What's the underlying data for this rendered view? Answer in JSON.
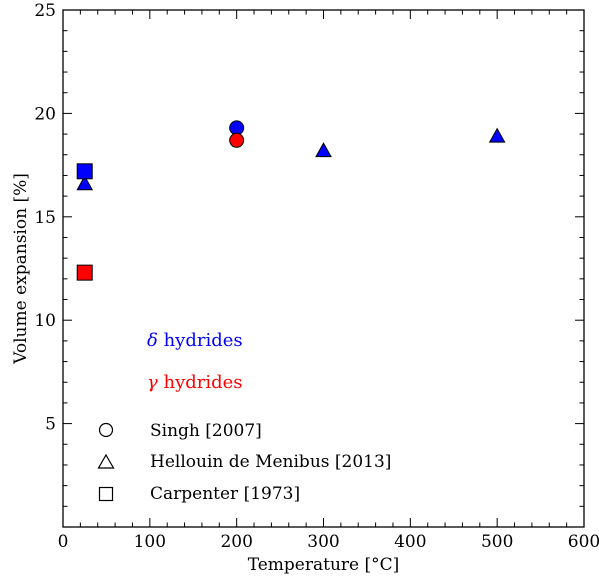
{
  "chart_data": {
    "type": "scatter",
    "title": "",
    "xlabel": "Temperature [°C]",
    "ylabel": "Volume expansion [%]",
    "xlim": [
      0,
      600
    ],
    "ylim": [
      0,
      25
    ],
    "xticks": [
      0,
      100,
      200,
      300,
      400,
      500,
      600
    ],
    "yticks": [
      5,
      10,
      15,
      20,
      25
    ],
    "grid": false,
    "legend_placement": "bottom-left",
    "colors": {
      "delta": "#0000ff",
      "gamma": "#ff0000"
    },
    "annotations": [
      {
        "symbol": "δ",
        "text": " hydrides",
        "color": "#0000ff"
      },
      {
        "symbol": "γ",
        "text": " hydrides",
        "color": "#ff0000"
      }
    ],
    "legend": [
      {
        "label": "Singh [2007]",
        "marker": "circle"
      },
      {
        "label": "Hellouin de Menibus [2013]",
        "marker": "triangle"
      },
      {
        "label": "Carpenter [1973]",
        "marker": "square"
      }
    ],
    "points": [
      {
        "x": 200,
        "y": 19.3,
        "marker": "circle",
        "phase": "delta"
      },
      {
        "x": 200,
        "y": 18.7,
        "marker": "circle",
        "phase": "gamma"
      },
      {
        "x": 25,
        "y": 16.6,
        "marker": "triangle",
        "phase": "delta"
      },
      {
        "x": 300,
        "y": 18.2,
        "marker": "triangle",
        "phase": "delta"
      },
      {
        "x": 500,
        "y": 18.9,
        "marker": "triangle",
        "phase": "delta"
      },
      {
        "x": 25,
        "y": 17.2,
        "marker": "square",
        "phase": "delta"
      },
      {
        "x": 25,
        "y": 12.3,
        "marker": "square",
        "phase": "gamma"
      }
    ]
  }
}
